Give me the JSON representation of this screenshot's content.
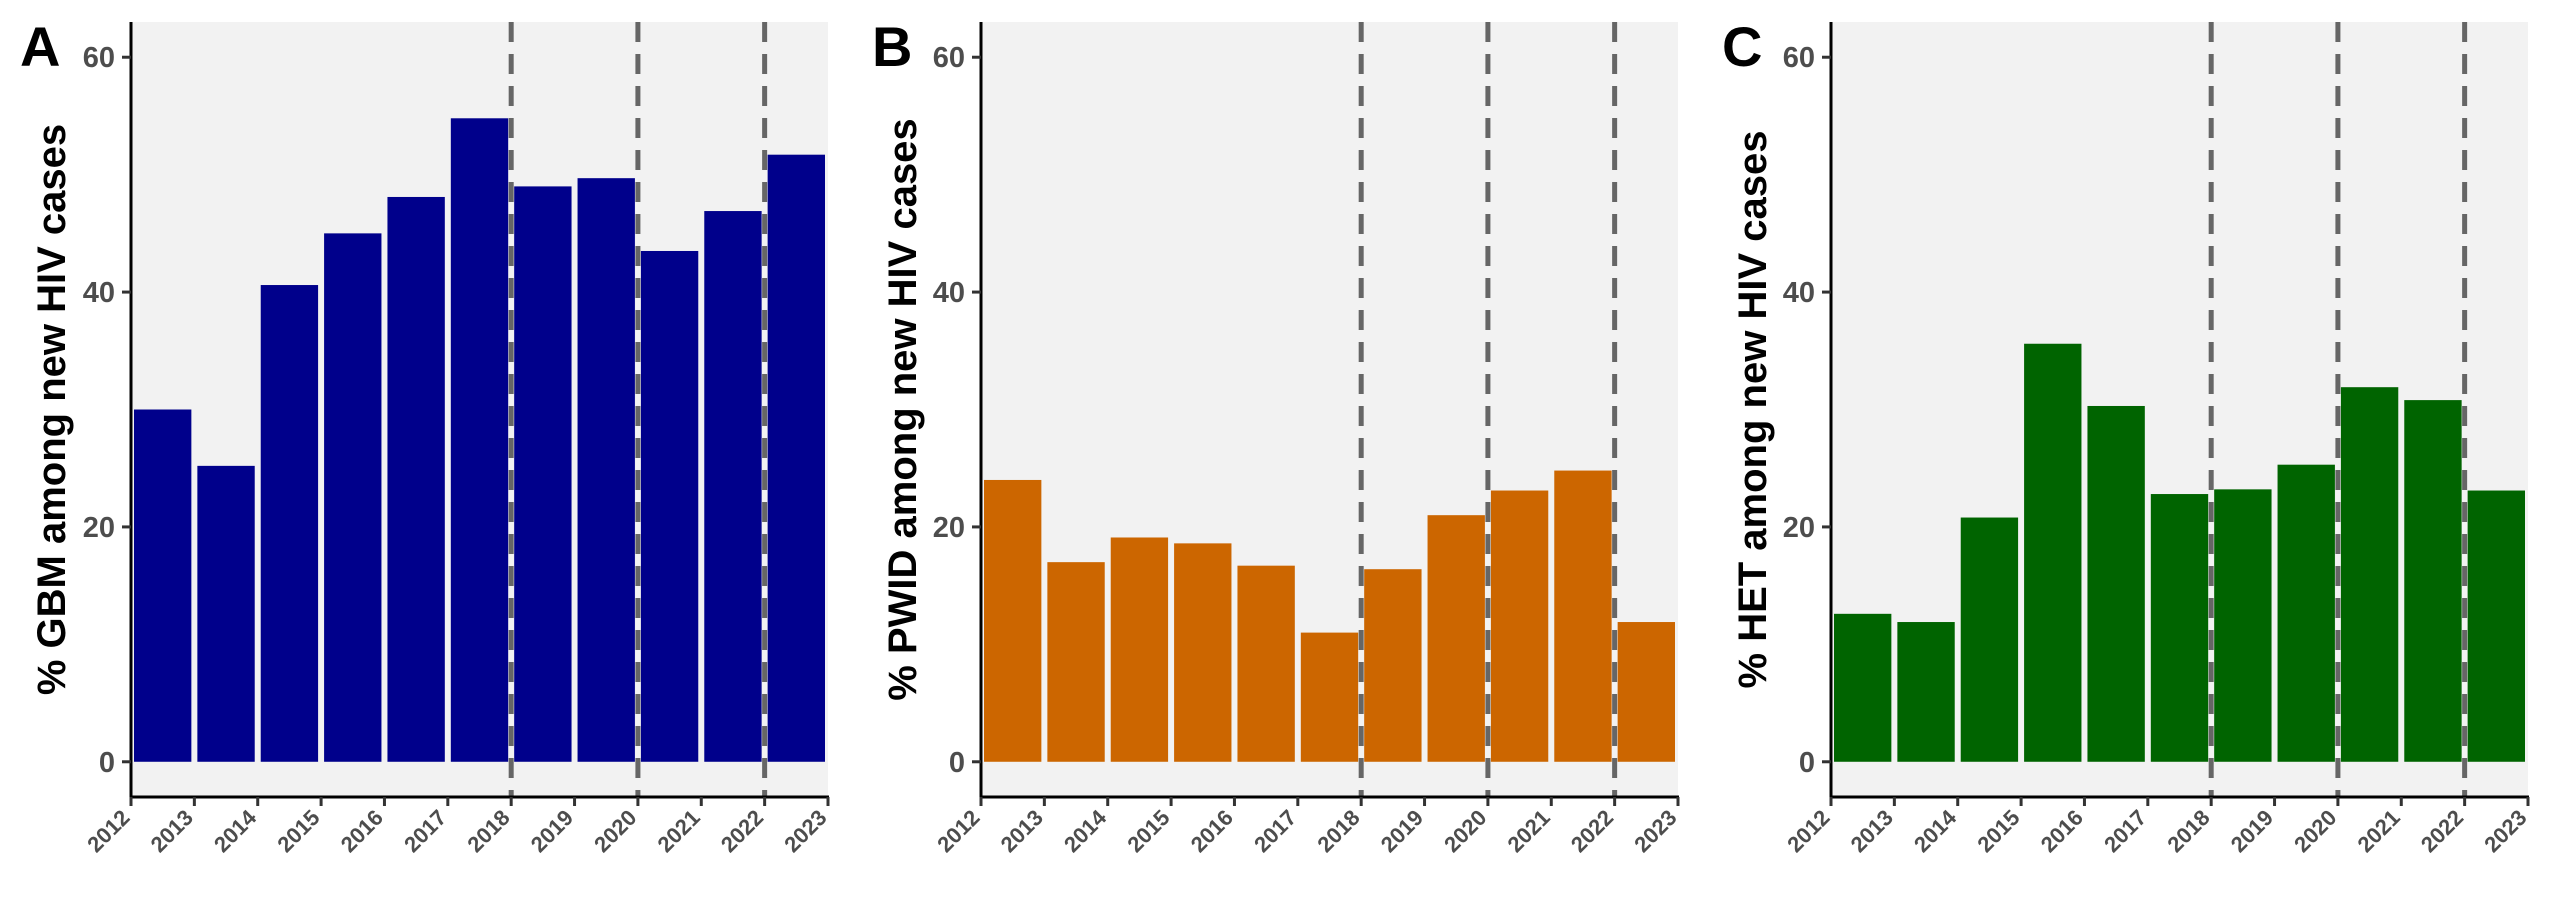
{
  "figure": {
    "background_color": "#ffffff",
    "panel_background_color": "#f2f2f2",
    "vline_color": "#666666"
  },
  "chart_data": [
    {
      "type": "bar",
      "panel_label": "A",
      "title": "",
      "xlabel": "",
      "ylabel": "% GBM among new HIV cases",
      "categories": [
        "2012",
        "2013",
        "2014",
        "2015",
        "2016",
        "2017",
        "2018",
        "2019",
        "2020",
        "2021",
        "2022"
      ],
      "x_tick_labels": [
        "2012",
        "2013",
        "2014",
        "2015",
        "2016",
        "2017",
        "2018",
        "2019",
        "2020",
        "2021",
        "2022",
        "2023"
      ],
      "values": [
        30.0,
        25.2,
        40.6,
        45.0,
        48.1,
        54.8,
        49.0,
        49.7,
        43.5,
        46.9,
        51.7
      ],
      "color": "#00008b",
      "xlim": [
        2012,
        2023
      ],
      "ylim": [
        -3,
        63
      ],
      "yticks": [
        0,
        20,
        40,
        60
      ],
      "vlines": [
        2018,
        2020,
        2022
      ],
      "grid": false,
      "legend": "none"
    },
    {
      "type": "bar",
      "panel_label": "B",
      "title": "",
      "xlabel": "",
      "ylabel": "% PWID among new HIV cases",
      "categories": [
        "2012",
        "2013",
        "2014",
        "2015",
        "2016",
        "2017",
        "2018",
        "2019",
        "2020",
        "2021",
        "2022"
      ],
      "x_tick_labels": [
        "2012",
        "2013",
        "2014",
        "2015",
        "2016",
        "2017",
        "2018",
        "2019",
        "2020",
        "2021",
        "2022",
        "2023"
      ],
      "values": [
        24.0,
        17.0,
        19.1,
        18.6,
        16.7,
        11.0,
        16.4,
        21.0,
        23.1,
        24.8,
        11.9
      ],
      "color": "#cc6600",
      "xlim": [
        2012,
        2023
      ],
      "ylim": [
        -3,
        63
      ],
      "yticks": [
        0,
        20,
        40,
        60
      ],
      "vlines": [
        2018,
        2020,
        2022
      ],
      "grid": false,
      "legend": "none"
    },
    {
      "type": "bar",
      "panel_label": "C",
      "title": "",
      "xlabel": "",
      "ylabel": "% HET among new HIV cases",
      "categories": [
        "2012",
        "2013",
        "2014",
        "2015",
        "2016",
        "2017",
        "2018",
        "2019",
        "2020",
        "2021",
        "2022"
      ],
      "x_tick_labels": [
        "2012",
        "2013",
        "2014",
        "2015",
        "2016",
        "2017",
        "2018",
        "2019",
        "2020",
        "2021",
        "2022",
        "2023"
      ],
      "values": [
        12.6,
        11.9,
        20.8,
        35.6,
        30.3,
        22.8,
        23.2,
        25.3,
        31.9,
        30.8,
        23.1
      ],
      "color": "#006400",
      "xlim": [
        2012,
        2023
      ],
      "ylim": [
        -3,
        63
      ],
      "yticks": [
        0,
        20,
        40,
        60
      ],
      "vlines": [
        2018,
        2020,
        2022
      ],
      "grid": false,
      "legend": "none"
    }
  ]
}
